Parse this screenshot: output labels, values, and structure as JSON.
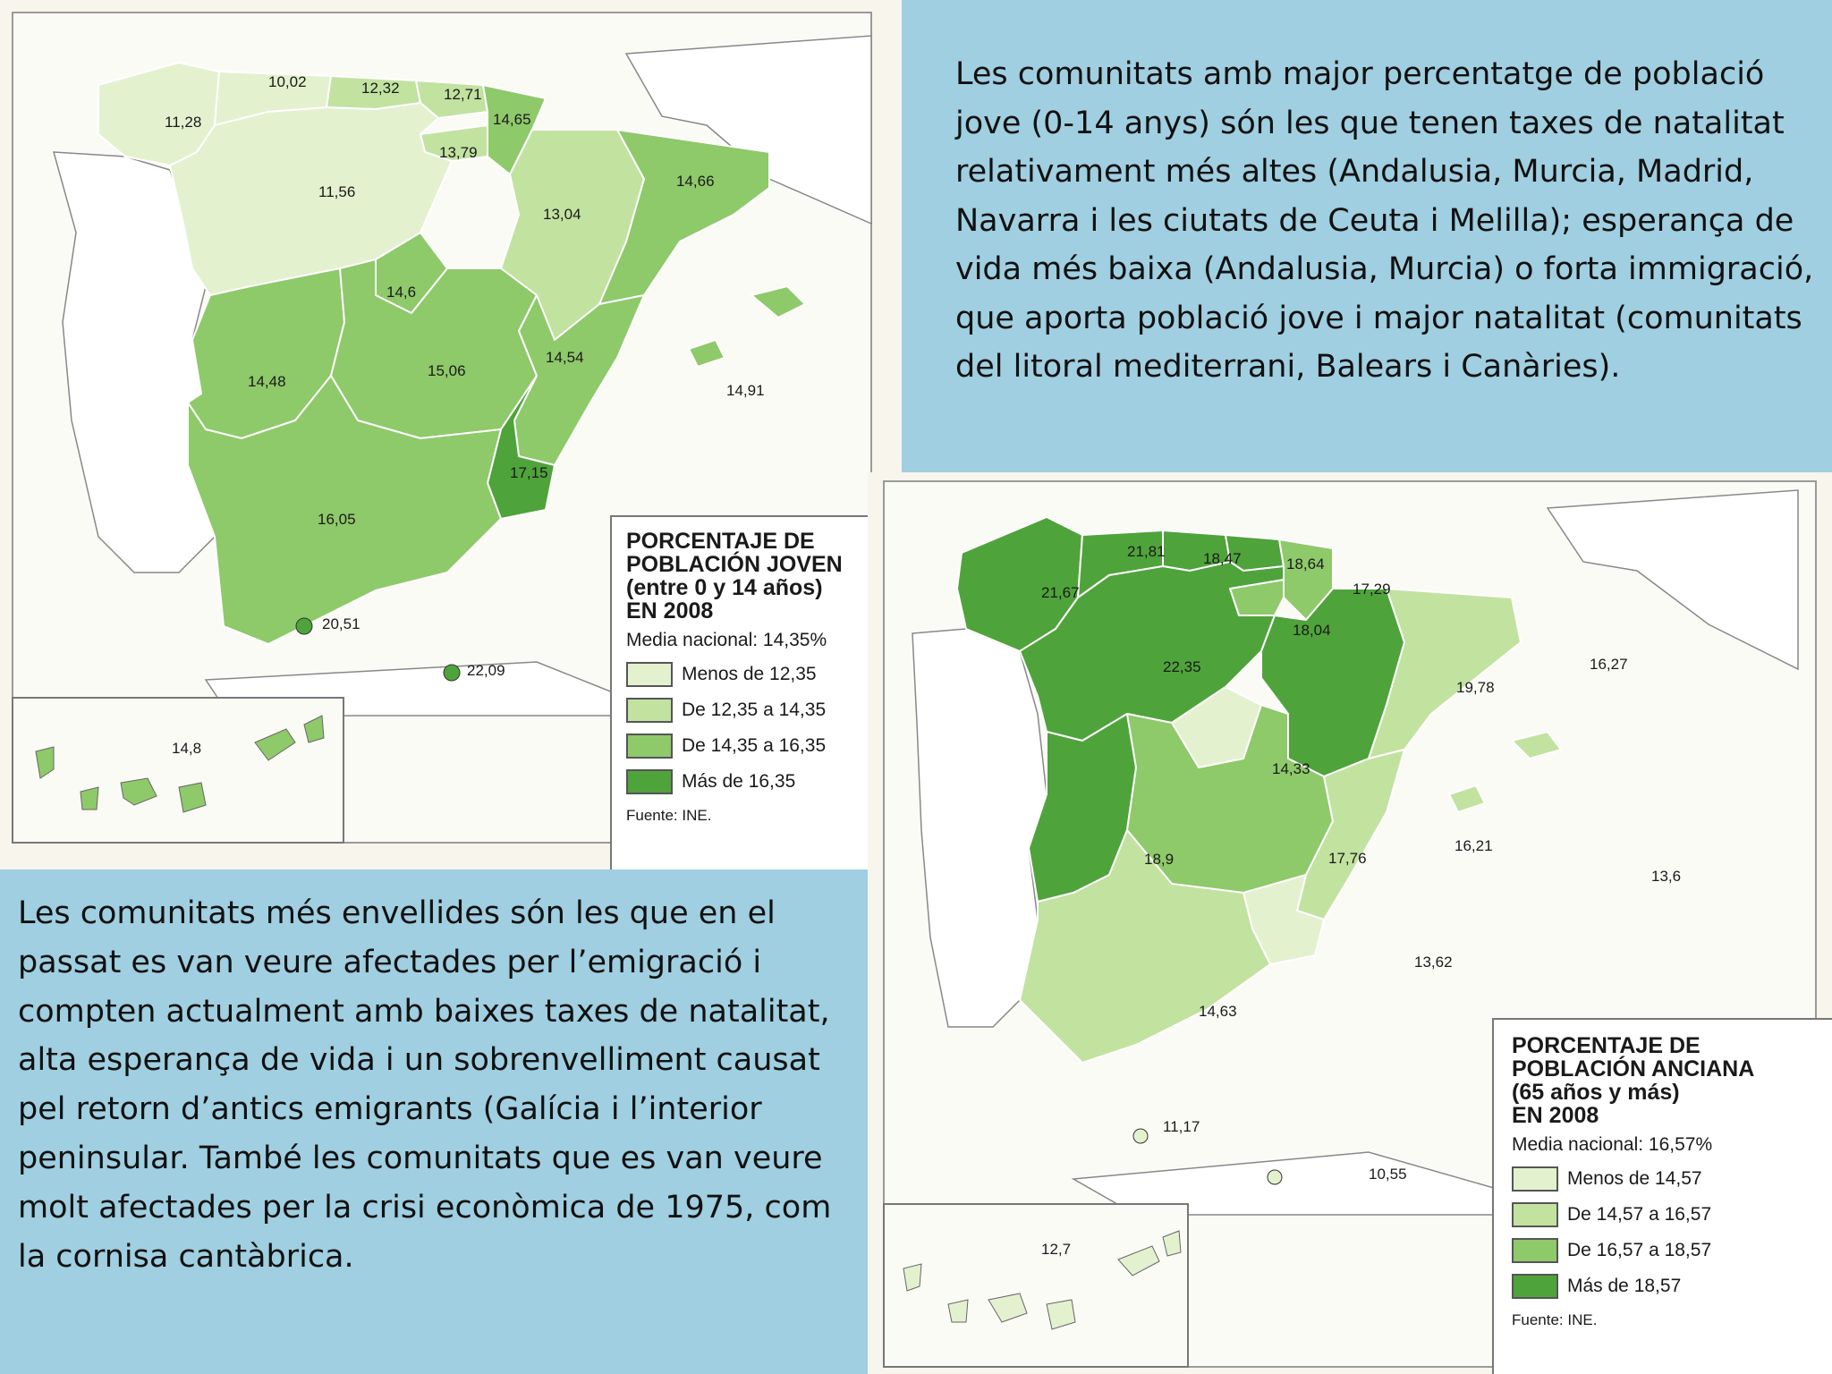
{
  "captions": {
    "top_right": "Les comunitats amb major percentatge de població jove (0-14 anys) són les que tenen taxes de natalitat relativament més altes (Andalusia, Murcia, Madrid, Navarra i les ciutats de Ceuta i Melilla); esperança de vida més baixa (Andalusia, Murcia) o forta immigració, que aporta població jove i major natalitat (comunitats del litoral mediterrani, Balears i Canàries).",
    "bottom_left": "Les comunitats més envellides són les que en el passat es van veure afectades per l’emigració i compten actualment amb baixes taxes de natalitat, alta esperança de vida i un sobrenvelliment causat pel retorn d’antics emigrants  (Galícia i l’interior peninsular. També les comunitats que es van veure molt afectades per la crisi econòmica de 1975, com la cornisa cantàbrica."
  },
  "colors": {
    "background_blue": "#9fcfe0",
    "class_1": "#e3f1cf",
    "class_2": "#c2e2a0",
    "class_3": "#8ec96a",
    "class_4": "#4fa33b",
    "sea": "#fbfbf6",
    "neighbor_land": "#ffffff"
  },
  "map_young": {
    "legend": {
      "title": "PORCENTAJE DE\nPOBLACIÓN JOVEN\n(entre 0 y 14 años)\nEN 2008",
      "mean": "Media nacional: 14,35%",
      "items": [
        {
          "label": "Menos de 12,35",
          "class": "class_1"
        },
        {
          "label": "De 12,35 a 14,35",
          "class": "class_2"
        },
        {
          "label": "De 14,35 a 16,35",
          "class": "class_3"
        },
        {
          "label": "Más de 16,35",
          "class": "class_4"
        }
      ],
      "source": "Fuente: INE."
    },
    "values": {
      "galicia": "11,28",
      "asturias": "10,02",
      "cantabria": "12,32",
      "pais_vasco": "12,71",
      "navarra": "14,65",
      "la_rioja": "13,79",
      "castilla_leon": "11,56",
      "aragon": "13,04",
      "cataluna": "14,66",
      "madrid": "14,6",
      "extremadura": "14,48",
      "castilla_la_mancha": "15,06",
      "valencia": "14,54",
      "baleares": "14,91",
      "murcia": "17,15",
      "andalucia": "16,05",
      "ceuta": "20,51",
      "melilla": "22,09",
      "canarias": "14,8"
    }
  },
  "map_old": {
    "legend": {
      "title": "PORCENTAJE DE\nPOBLACIÓN ANCIANA\n(65 años y más)\nEN 2008",
      "mean": "Media nacional: 16,57%",
      "items": [
        {
          "label": "Menos de 14,57",
          "class": "class_1"
        },
        {
          "label": "De 14,57 a 16,57",
          "class": "class_2"
        },
        {
          "label": "De 16,57 a 18,57",
          "class": "class_3"
        },
        {
          "label": "Más de 18,57",
          "class": "class_4"
        }
      ],
      "source": "Fuente: INE."
    },
    "values": {
      "galicia": "21,67",
      "asturias": "21,81",
      "cantabria": "18,47",
      "pais_vasco": "18,64",
      "navarra": "17,29",
      "la_rioja": "18,04",
      "castilla_leon": "22,35",
      "aragon": "19,78",
      "cataluna": "16,27",
      "madrid": "14,33",
      "extremadura": "18,9",
      "castilla_la_mancha": "17,76",
      "valencia": "16,21",
      "baleares": "13,6",
      "murcia": "13,62",
      "andalucia": "14,63",
      "ceuta": "11,17",
      "melilla": "10,55",
      "canarias": "12,7"
    }
  }
}
